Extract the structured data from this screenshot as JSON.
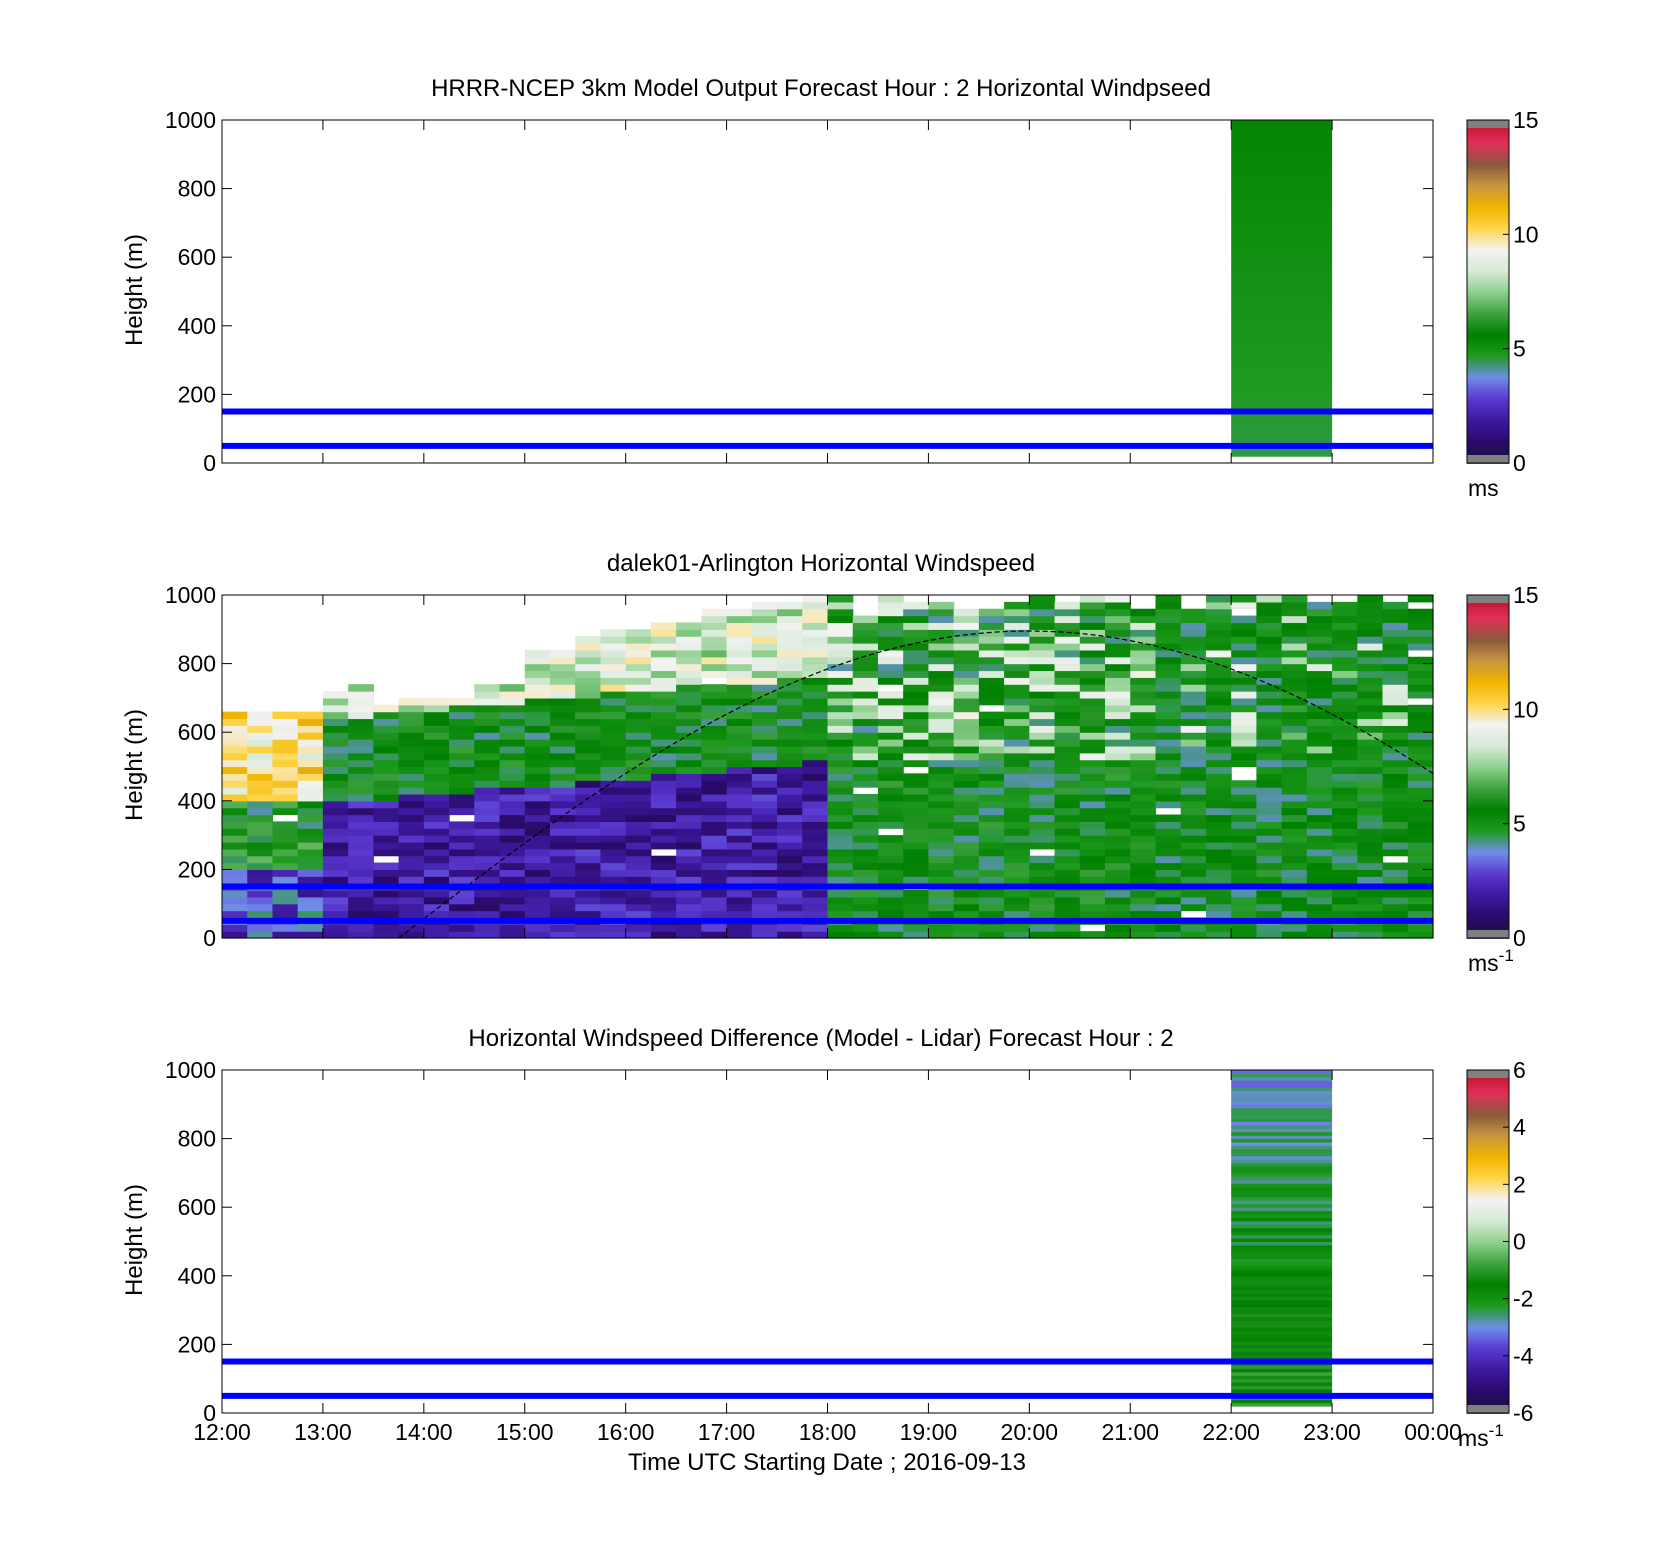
{
  "figure": {
    "xlabel": "Time UTC  Starting Date ; 2016-09-13",
    "x_ticks": [
      "12:00",
      "13:00",
      "14:00",
      "15:00",
      "16:00",
      "17:00",
      "18:00",
      "19:00",
      "20:00",
      "21:00",
      "22:00",
      "23:00",
      "00:00"
    ],
    "blue_lines_m": [
      50,
      150
    ],
    "blue_line_color": "#0000ff"
  },
  "colorbar_palette": [
    "#1a0f3c",
    "#2b0a6b",
    "#3d1aa0",
    "#5a3ad0",
    "#6f8ee8",
    "#1f9a1f",
    "#008000",
    "#3fa33f",
    "#8fcf8f",
    "#d8ead8",
    "#f2f2f2",
    "#ffd54a",
    "#f0b400",
    "#c89640",
    "#8a5a3a",
    "#e0305a",
    "#c0102a"
  ],
  "chart_data": [
    {
      "type": "heatmap",
      "title": "HRRR-NCEP 3km Model Output   Forecast Hour : 2 Horizontal Windpseed",
      "ylabel": "Height (m)",
      "ylim": [
        0,
        1000
      ],
      "y_ticks": [
        "0",
        "200",
        "400",
        "600",
        "800",
        "1000"
      ],
      "xlim_hours": [
        12,
        24
      ],
      "colorbar": {
        "ticks": [
          "0",
          "5",
          "10",
          "15"
        ],
        "range": [
          0,
          15
        ],
        "unit": "ms"
      },
      "data_columns": [
        {
          "x_start": "22:00",
          "x_end": "23:00",
          "height_range_m": [
            20,
            1000
          ],
          "value_range": [
            4.5,
            5.5
          ],
          "note_color": "green"
        }
      ]
    },
    {
      "type": "heatmap",
      "title": "dalek01-Arlington  Horizontal Windspeed",
      "ylabel": "Height (m)",
      "ylim": [
        0,
        1000
      ],
      "y_ticks": [
        "0",
        "200",
        "400",
        "600",
        "800",
        "1000"
      ],
      "xlim_hours": [
        12,
        24
      ],
      "colorbar": {
        "ticks": [
          "0",
          "5",
          "10",
          "15"
        ],
        "range": [
          0,
          15
        ],
        "unit": "ms",
        "unit_sup": "-1"
      },
      "time_coverage": [
        "12:00",
        "23:50"
      ],
      "dashed_curve": {
        "x_start": "13:45",
        "peak_x": "20:00",
        "peak_y": 895,
        "x_end": "24:00",
        "y_end": 470
      },
      "regimes": [
        {
          "x_start": "12:00",
          "x_end": "12:50",
          "top_m": 660,
          "low_values": "blue/green",
          "upper_values": "orange/brown"
        },
        {
          "x_start": "12:50",
          "x_end": "18:00",
          "mixed_layer_top_m": 480,
          "low_values": "purple/blue 1-3",
          "upper_values": "green then yellow 8-10"
        },
        {
          "x_start": "18:00",
          "x_end": "23:50",
          "top_m": 1000,
          "values": "green/white/yellow 4-9"
        }
      ]
    },
    {
      "type": "heatmap",
      "title": "Horizontal Windspeed Difference (Model - Lidar) Forecast Hour : 2",
      "ylabel": "Height (m)",
      "ylim": [
        0,
        1000
      ],
      "y_ticks": [
        "0",
        "200",
        "400",
        "600",
        "800",
        "1000"
      ],
      "xlim_hours": [
        12,
        24
      ],
      "colorbar": {
        "ticks": [
          "-6",
          "-4",
          "-2",
          "0",
          "2",
          "4",
          "6"
        ],
        "range": [
          -6,
          6
        ],
        "unit": "ms",
        "unit_sup": "-1"
      },
      "data_columns": [
        {
          "x_start": "22:00",
          "x_end": "23:00",
          "height_range_m": [
            20,
            1000
          ],
          "value_range": [
            -3,
            -0.5
          ],
          "note_color": "light green"
        }
      ]
    }
  ]
}
